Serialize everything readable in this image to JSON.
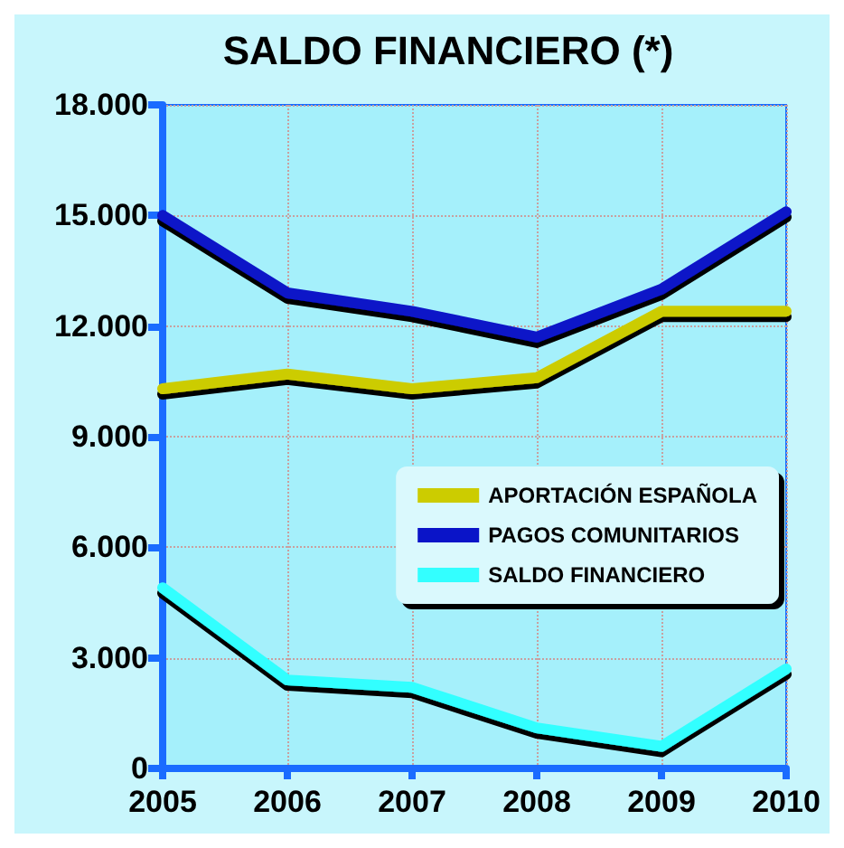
{
  "chart_data": {
    "type": "line",
    "title": "SALDO FINANCIERO (*)",
    "categories": [
      "2005",
      "2006",
      "2007",
      "2008",
      "2009",
      "2010"
    ],
    "series": [
      {
        "name": "APORTACIÓN ESPAÑOLA",
        "color": "#cccc00",
        "values": [
          10300,
          10700,
          10300,
          10600,
          12400,
          12400
        ]
      },
      {
        "name": "PAGOS COMUNITARIOS",
        "color": "#0a14c8",
        "values": [
          15000,
          12900,
          12400,
          11700,
          13000,
          15100
        ]
      },
      {
        "name": "SALDO FINANCIERO",
        "color": "#33ffff",
        "values": [
          4900,
          2400,
          2200,
          1100,
          600,
          2700
        ]
      }
    ],
    "ylim": [
      0,
      18000
    ],
    "yticks": [
      {
        "value": 0,
        "label": "0"
      },
      {
        "value": 3000,
        "label": "3.000"
      },
      {
        "value": 6000,
        "label": "6.000"
      },
      {
        "value": 9000,
        "label": "9.000"
      },
      {
        "value": 12000,
        "label": "12.000"
      },
      {
        "value": 15000,
        "label": "15.000"
      },
      {
        "value": 18000,
        "label": "18.000"
      }
    ],
    "grid": true,
    "legend": "right",
    "marker": "none",
    "line_style": "solid"
  }
}
